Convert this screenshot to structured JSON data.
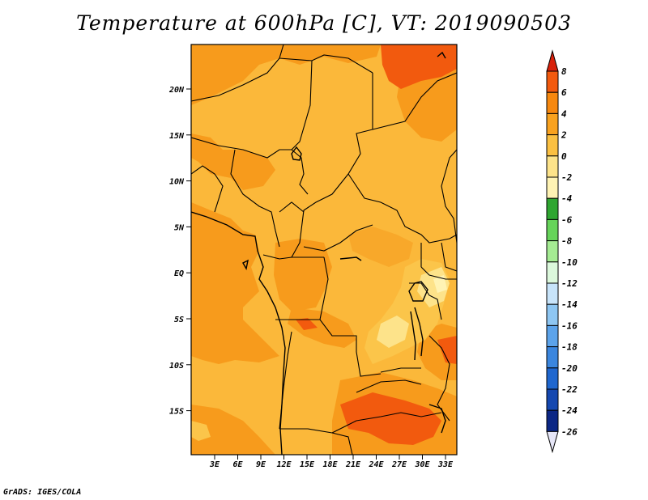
{
  "title": "Temperature at 600hPa [C], VT: 2019090503",
  "credit": "GrADS: IGES/COLA",
  "map": {
    "lat_ticks": [
      "20N",
      "15N",
      "10N",
      "5N",
      "EQ",
      "5S",
      "10S",
      "15S"
    ],
    "lon_ticks": [
      "3E",
      "6E",
      "9E",
      "12E",
      "15E",
      "18E",
      "21E",
      "24E",
      "27E",
      "30E",
      "33E"
    ]
  },
  "colorbar": {
    "labels": [
      "8",
      "6",
      "4",
      "2",
      "0",
      "-2",
      "-4",
      "-6",
      "-8",
      "-10",
      "-12",
      "-14",
      "-16",
      "-18",
      "-20",
      "-22",
      "-24",
      "-26"
    ],
    "colors": [
      "#e0220a",
      "#f25a0e",
      "#f7880f",
      "#f9a21f",
      "#fbc042",
      "#fde38a",
      "#fff3b4",
      "#2fa631",
      "#66d35a",
      "#a5eb93",
      "#dcf8dc",
      "#c8e4fa",
      "#8ec6f2",
      "#5ca3ea",
      "#3b86de",
      "#1f67cf",
      "#1548b0",
      "#0c2785",
      "#060d5c"
    ],
    "upper_cap": "#d8210b",
    "lower_cap": "#e6e6f7"
  }
}
